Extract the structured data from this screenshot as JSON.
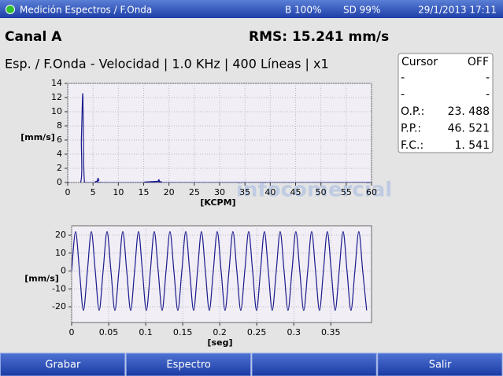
{
  "status_bar": {
    "title": "Medición Espectros / F.Onda",
    "battery": "B 100%",
    "sd": "SD 99%",
    "datetime": "29/1/2013 17:11"
  },
  "header": {
    "channel": "Canal A",
    "rms": "RMS: 15.241 mm/s",
    "subtitle": "Esp. / F.Onda - Velocidad | 1.0 KHz | 400 Líneas | x1"
  },
  "cursor_panel": {
    "title": "Cursor",
    "state": "OFF",
    "rows": [
      [
        "-",
        "-"
      ],
      [
        "-",
        "-"
      ],
      [
        "O.P.:",
        "23. 488"
      ],
      [
        "P.P.:",
        "46. 521"
      ],
      [
        "F.C.:",
        "1. 541"
      ]
    ]
  },
  "watermark": "infocomercial",
  "chart_data": [
    {
      "type": "line",
      "xlabel": "[KCPM]",
      "ylabel": "[mm/s]",
      "color": "#1a1a8c",
      "grid": true,
      "x": [
        0,
        2.55,
        2.7,
        2.85,
        3.0,
        3.15,
        3.3,
        3.45,
        5.7,
        5.85,
        6.0,
        6.15,
        6.3,
        17.7,
        17.85,
        18.0,
        18.15,
        18.3,
        60
      ],
      "values": [
        0,
        0,
        6,
        10.2,
        12.2,
        3,
        0.2,
        0,
        0,
        0.3,
        0.6,
        0.3,
        0,
        0,
        0.2,
        0.4,
        0.2,
        0,
        0
      ],
      "xlim": [
        0,
        60
      ],
      "xticks": [
        0,
        5,
        10,
        15,
        20,
        25,
        30,
        35,
        40,
        45,
        50,
        55,
        60
      ],
      "ylim": [
        0,
        14
      ],
      "yticks": [
        0,
        2,
        4,
        6,
        8,
        10,
        12,
        14
      ]
    },
    {
      "type": "line",
      "xlabel": "[seg]",
      "ylabel": "[mm/s]",
      "color": "#1a1a8c",
      "grid": true,
      "x": [
        0,
        0.0053,
        0.0106,
        0.0159,
        0.0213,
        0.0266,
        0.0319,
        0.0372,
        0.0425,
        0.0478,
        0.0531,
        0.0584,
        0.0638,
        0.0691,
        0.0744,
        0.0797,
        0.085,
        0.0903,
        0.0956,
        0.1009,
        0.1063,
        0.1116,
        0.1169,
        0.1222,
        0.1275,
        0.1328,
        0.1381,
        0.1434,
        0.1488,
        0.1541,
        0.1594,
        0.1647,
        0.17,
        0.1753,
        0.1806,
        0.1859,
        0.1913,
        0.1966,
        0.2019,
        0.2072,
        0.2125,
        0.2178,
        0.2231,
        0.2284,
        0.2338,
        0.2391,
        0.2444,
        0.2497,
        0.255,
        0.2603,
        0.2656,
        0.2709,
        0.2763,
        0.2816,
        0.2869,
        0.2922,
        0.2975,
        0.3028,
        0.3081,
        0.3134,
        0.3188,
        0.3241,
        0.3294,
        0.3347,
        0.34,
        0.3453,
        0.3506,
        0.3559,
        0.3613,
        0.3666,
        0.3719,
        0.3772,
        0.3825,
        0.3878,
        0.3931,
        0.3984
      ],
      "values": [
        0,
        22,
        0,
        -22,
        0,
        22,
        0,
        -22,
        0,
        22,
        0,
        -22,
        0,
        22,
        0,
        -22,
        0,
        22,
        0,
        -22,
        0,
        22,
        0,
        -22,
        0,
        22,
        0,
        -22,
        0,
        22,
        0,
        -22,
        0,
        22,
        0,
        -22,
        0,
        22,
        0,
        -22,
        0,
        22,
        0,
        -22,
        0,
        22,
        0,
        -22,
        0,
        22,
        0,
        -22,
        0,
        22,
        0,
        -22,
        0,
        22,
        0,
        -22,
        0,
        22,
        0,
        -22,
        0,
        22,
        0,
        -22,
        0,
        22,
        0,
        -22,
        0,
        22,
        0,
        -22
      ],
      "xlim": [
        0,
        0.405
      ],
      "xticks": [
        0,
        0.05,
        0.1,
        0.15,
        0.2,
        0.25,
        0.3,
        0.35
      ],
      "ylim": [
        -28.8,
        25.3
      ],
      "yticks": [
        -20,
        -10,
        0,
        10,
        20
      ]
    }
  ],
  "buttons": [
    "Grabar",
    "Espectro",
    "Salir"
  ]
}
